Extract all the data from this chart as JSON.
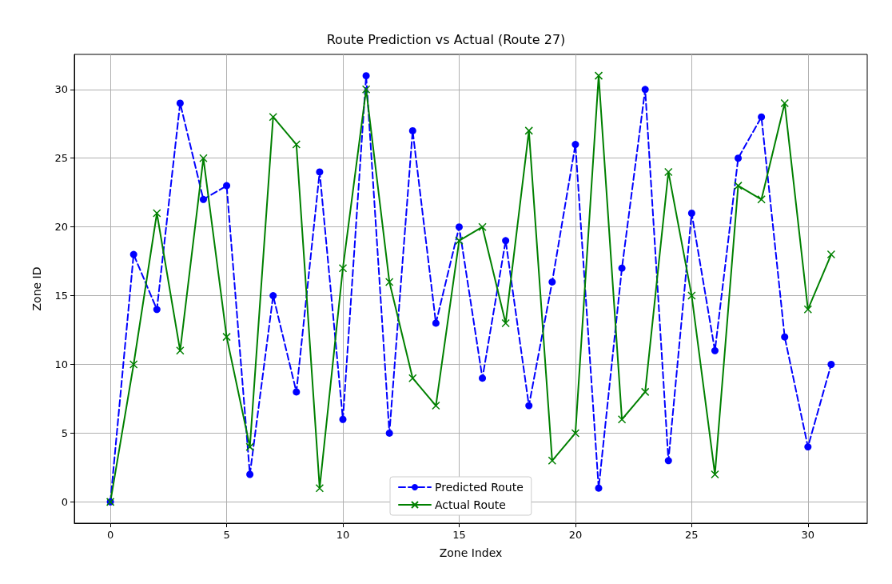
{
  "chart_data": {
    "type": "line",
    "title": "Route Prediction vs Actual (Route 27)",
    "xlabel": "Zone Index",
    "ylabel": "Zone ID",
    "x": [
      0,
      1,
      2,
      3,
      4,
      5,
      6,
      7,
      8,
      9,
      10,
      11,
      12,
      13,
      14,
      15,
      16,
      17,
      18,
      19,
      20,
      21,
      22,
      23,
      24,
      25,
      26,
      27,
      28,
      29,
      30,
      31
    ],
    "series": [
      {
        "name": "Predicted Route",
        "color": "#0000ff",
        "marker": "circle",
        "line_style": "dashed",
        "values": [
          0,
          18,
          14,
          29,
          22,
          23,
          2,
          15,
          8,
          24,
          6,
          31,
          5,
          27,
          13,
          20,
          9,
          19,
          7,
          16,
          26,
          1,
          17,
          30,
          3,
          21,
          11,
          25,
          28,
          12,
          4,
          10
        ]
      },
      {
        "name": "Actual Route",
        "color": "#008000",
        "marker": "cross",
        "line_style": "solid",
        "values": [
          0,
          10,
          21,
          11,
          25,
          12,
          4,
          28,
          26,
          1,
          17,
          30,
          16,
          9,
          7,
          19,
          20,
          13,
          27,
          3,
          5,
          31,
          6,
          8,
          24,
          15,
          2,
          23,
          22,
          29,
          14,
          18
        ]
      }
    ],
    "xlim": [
      -1.55,
      32.55
    ],
    "xticks": [
      0,
      5,
      10,
      15,
      20,
      25,
      30
    ],
    "ylim": [
      -1.55,
      32.55
    ],
    "yticks": [
      0,
      5,
      10,
      15,
      20,
      25,
      30
    ],
    "grid": true,
    "legend": "bottom"
  }
}
